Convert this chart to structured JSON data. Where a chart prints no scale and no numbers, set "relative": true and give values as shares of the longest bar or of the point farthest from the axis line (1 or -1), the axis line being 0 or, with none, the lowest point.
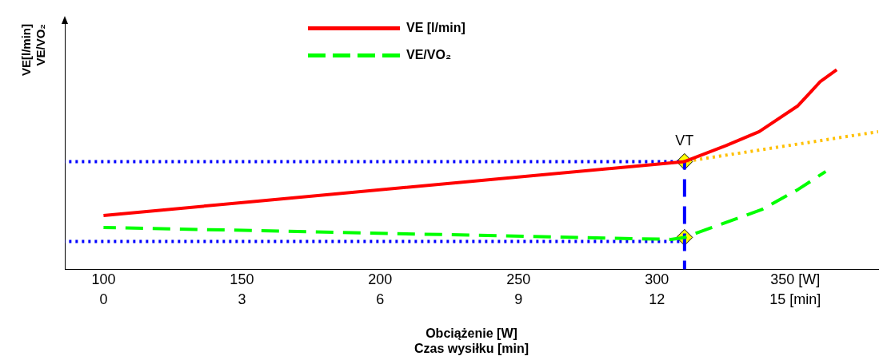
{
  "chart_data": {
    "type": "line",
    "relative": true,
    "xlabel": "Obciążenie [W]",
    "x2label": "Czas wysiłku [min]",
    "ylabel": "VE[l/min]",
    "y2label": "VE/VO₂",
    "xlim": [
      86,
      380
    ],
    "xticks": [
      100,
      150,
      200,
      250,
      300,
      {
        "value": 350,
        "label": "350 [W]"
      }
    ],
    "x2lim": [
      -0.84,
      16.8
    ],
    "x2ticks": [
      0,
      3,
      6,
      9,
      12,
      {
        "value": 15,
        "label": "15 [min]"
      }
    ],
    "legend": "top",
    "grid": false,
    "marker": "none",
    "series": [
      {
        "name": "VE [l/min]",
        "color": "#ff0000",
        "line_style": "solid",
        "x": [
          100,
          310,
          325,
          337,
          351,
          359,
          365
        ],
        "values": [
          0.27,
          0.54,
          0.62,
          0.69,
          0.82,
          0.94,
          1.0
        ]
      },
      {
        "name": "VE/VO₂",
        "color": "#00ff00",
        "line_style": "dashed",
        "x": [
          100,
          305,
          310,
          322,
          338,
          351,
          361
        ],
        "values": [
          0.21,
          0.15,
          0.16,
          0.22,
          0.3,
          0.4,
          0.49
        ]
      },
      {
        "color": "#ffc000",
        "line_style": "dotted",
        "x": [
          310,
          380
        ],
        "values": [
          0.54,
          0.69
        ]
      },
      {
        "color": "#0000ff",
        "line_style": "dotted",
        "x": [
          86,
          310
        ],
        "values": [
          0.54,
          0.54
        ]
      },
      {
        "color": "#0000ff",
        "line_style": "dotted",
        "x": [
          86,
          310
        ],
        "values": [
          0.14,
          0.14
        ]
      },
      {
        "color": "#0000ff",
        "line_style": "dashed",
        "x": [
          310,
          310
        ],
        "values": [
          0.54,
          0
        ]
      },
      {
        "type": "scatter",
        "marker": "diamond",
        "color": "#ffff00",
        "x": [
          310,
          310
        ],
        "values": [
          0.54,
          0.16
        ]
      }
    ],
    "annotations": [
      {
        "text": "VT",
        "x": 310,
        "y": 0.54
      }
    ]
  }
}
